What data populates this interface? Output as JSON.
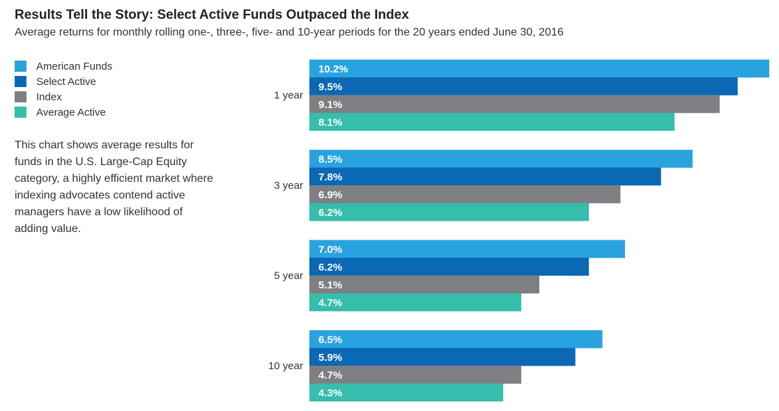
{
  "chart_data": {
    "type": "bar",
    "orientation": "horizontal",
    "title": "Results Tell the Story: Select Active Funds Outpaced the Index",
    "subtitle": "Average returns for monthly rolling one-, three-, five- and 10-year periods for the 20 years ended June 30, 2016",
    "categories": [
      "1 year",
      "3 year",
      "5 year",
      "10 year"
    ],
    "series": [
      {
        "name": "American Funds",
        "color": "#29a3df",
        "values": [
          10.2,
          8.5,
          7.0,
          6.5
        ],
        "labels": [
          "10.2%",
          "8.5%",
          "7.0%",
          "6.5%"
        ]
      },
      {
        "name": "Select Active",
        "color": "#0b68b4",
        "values": [
          9.5,
          7.8,
          6.2,
          5.9
        ],
        "labels": [
          "9.5%",
          "7.8%",
          "6.2%",
          "5.9%"
        ]
      },
      {
        "name": "Index",
        "color": "#7f7f83",
        "values": [
          9.1,
          6.9,
          5.1,
          4.7
        ],
        "labels": [
          "9.1%",
          "6.9%",
          "5.1%",
          "4.7%"
        ]
      },
      {
        "name": "Average Active",
        "color": "#36bdac",
        "values": [
          8.1,
          6.2,
          4.7,
          4.3
        ],
        "labels": [
          "8.1%",
          "6.2%",
          "4.7%",
          "4.3%"
        ]
      }
    ],
    "xlim": [
      0,
      10.2
    ],
    "legend_position": "top-left",
    "grid": false
  },
  "note": "This chart shows average results for funds in the U.S. Large-Cap Equity category, a highly efficient market where indexing advocates contend active managers have a low likelihood of adding value."
}
